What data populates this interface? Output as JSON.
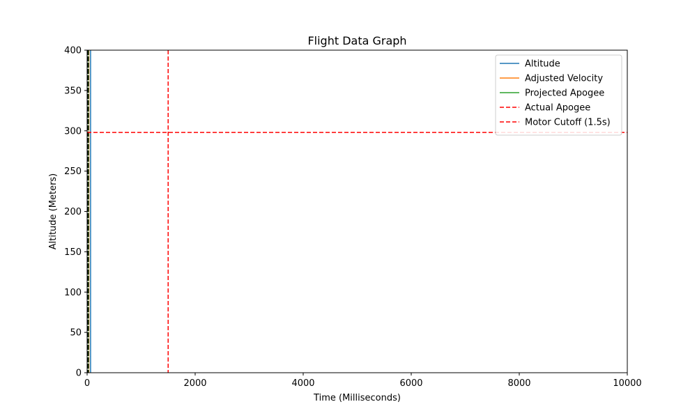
{
  "chart_data": {
    "type": "line",
    "title": "Flight Data Graph",
    "xlabel": "Time (Milliseconds)",
    "ylabel": "Altitude (Meters)",
    "xlim": [
      0,
      10000
    ],
    "ylim": [
      0,
      400
    ],
    "xticks": [
      0,
      2000,
      4000,
      6000,
      8000,
      10000
    ],
    "yticks": [
      0,
      50,
      100,
      150,
      200,
      250,
      300,
      350,
      400
    ],
    "grid": false,
    "legend_position": "top-right",
    "series": [
      {
        "name": "Altitude",
        "color": "#1f77b4",
        "style": "solid"
      },
      {
        "name": "Adjusted Velocity",
        "color": "#ff7f0e",
        "style": "solid"
      },
      {
        "name": "Projected Apogee",
        "color": "#2ca02c",
        "style": "solid"
      },
      {
        "name": "Actual Apogee",
        "color": "#ff0000",
        "style": "dashed"
      },
      {
        "name": "Motor Cutoff (1.5s)",
        "color": "#ff0000",
        "style": "dashed"
      }
    ],
    "reference_lines": {
      "actual_apogee_y": 298,
      "motor_cutoff_x": 1500
    },
    "data_cluster": {
      "x_max": 50,
      "color": "#000000"
    }
  }
}
